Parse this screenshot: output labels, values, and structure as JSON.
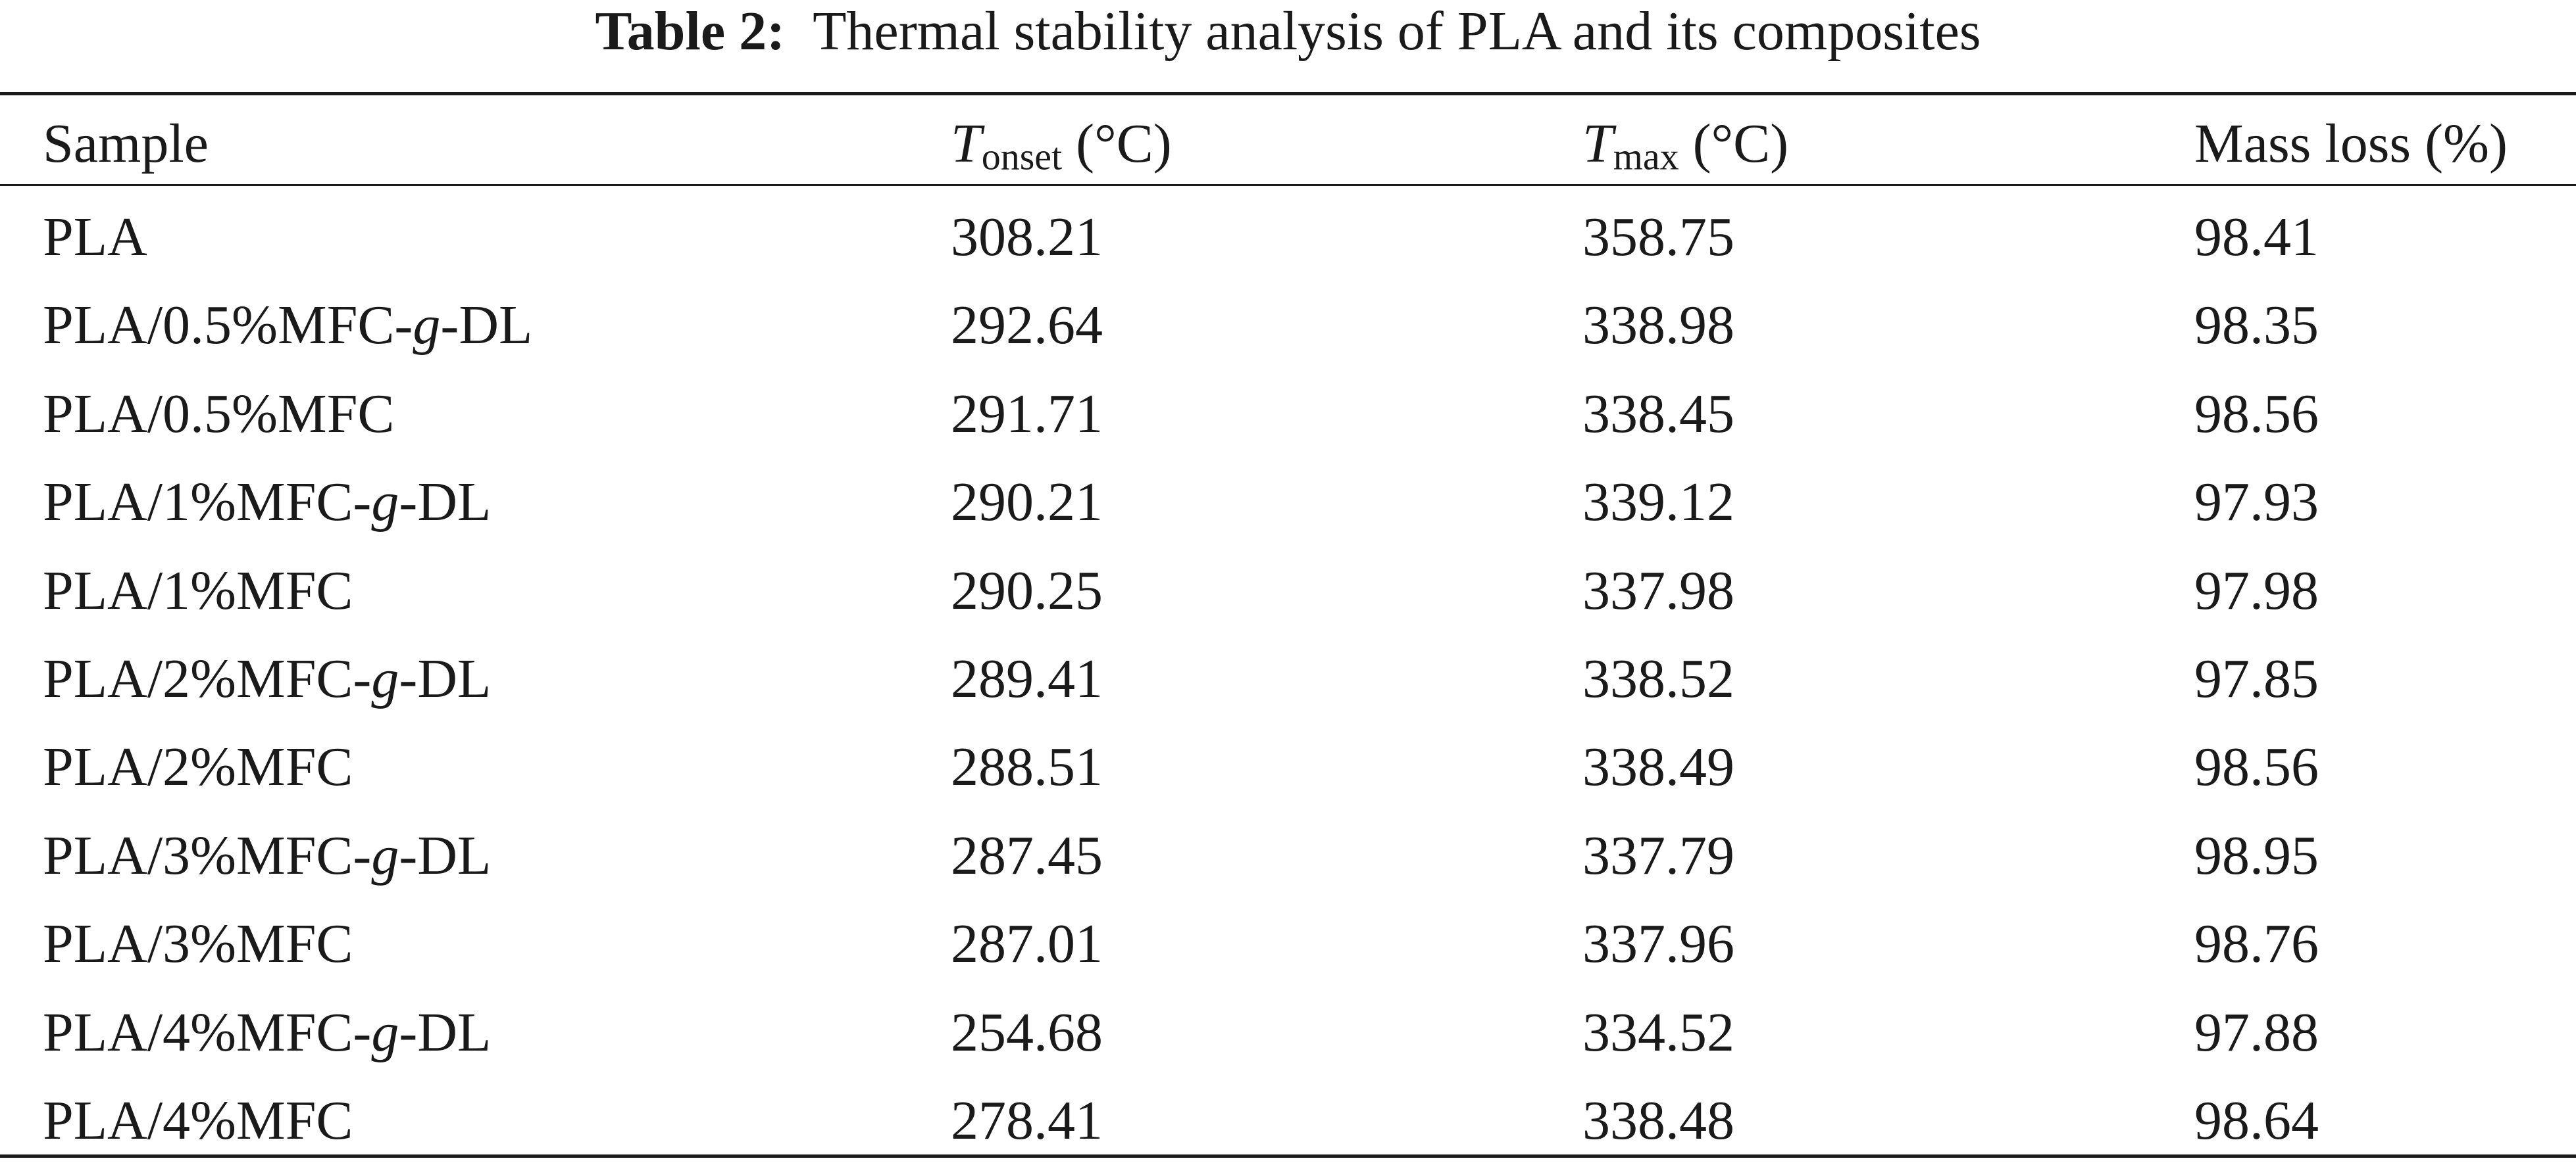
{
  "caption": {
    "label": "Table 2:",
    "text": "Thermal stability analysis of PLA and its composites"
  },
  "table": {
    "headers": {
      "sample": "Sample",
      "tonset_symbol": "T",
      "tonset_sub": "onset",
      "tonset_unit": "(°C)",
      "tmax_symbol": "T",
      "tmax_sub": "max",
      "tmax_unit": "(°C)",
      "mass_loss": "Mass loss (%)"
    },
    "rows": [
      {
        "pre": "PLA",
        "ital": "",
        "post": "",
        "tonset": "308.21",
        "tmax": "358.75",
        "mass_loss": "98.41"
      },
      {
        "pre": "PLA/0.5%MFC-",
        "ital": "g",
        "post": "-DL",
        "tonset": "292.64",
        "tmax": "338.98",
        "mass_loss": "98.35"
      },
      {
        "pre": "PLA/0.5%MFC",
        "ital": "",
        "post": "",
        "tonset": "291.71",
        "tmax": "338.45",
        "mass_loss": "98.56"
      },
      {
        "pre": "PLA/1%MFC-",
        "ital": "g",
        "post": "-DL",
        "tonset": "290.21",
        "tmax": "339.12",
        "mass_loss": "97.93"
      },
      {
        "pre": "PLA/1%MFC",
        "ital": "",
        "post": "",
        "tonset": "290.25",
        "tmax": "337.98",
        "mass_loss": "97.98"
      },
      {
        "pre": "PLA/2%MFC-",
        "ital": "g",
        "post": "-DL",
        "tonset": "289.41",
        "tmax": "338.52",
        "mass_loss": "97.85"
      },
      {
        "pre": "PLA/2%MFC",
        "ital": "",
        "post": "",
        "tonset": "288.51",
        "tmax": "338.49",
        "mass_loss": "98.56"
      },
      {
        "pre": "PLA/3%MFC-",
        "ital": "g",
        "post": "-DL",
        "tonset": "287.45",
        "tmax": "337.79",
        "mass_loss": "98.95"
      },
      {
        "pre": "PLA/3%MFC",
        "ital": "",
        "post": "",
        "tonset": "287.01",
        "tmax": "337.96",
        "mass_loss": "98.76"
      },
      {
        "pre": "PLA/4%MFC-",
        "ital": "g",
        "post": "-DL",
        "tonset": "254.68",
        "tmax": "334.52",
        "mass_loss": "97.88"
      },
      {
        "pre": "PLA/4%MFC",
        "ital": "",
        "post": "",
        "tonset": "278.41",
        "tmax": "338.48",
        "mass_loss": "98.64"
      }
    ]
  }
}
